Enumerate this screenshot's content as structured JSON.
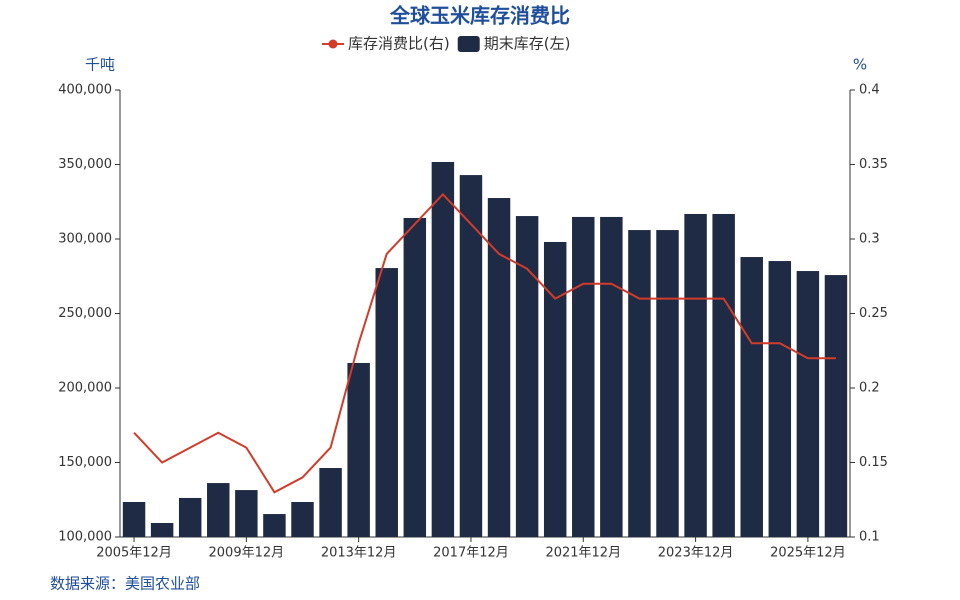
{
  "chart_data": {
    "type": "bar",
    "title": "全球玉米库存消费比",
    "y_label": "千吨",
    "y2_label": "%",
    "source": "数据来源：美国农业部",
    "categories": [
      "2005年12月",
      null,
      null,
      null,
      "2009年12月",
      null,
      null,
      null,
      "2013年12月",
      null,
      null,
      null,
      "2017年12月",
      null,
      null,
      null,
      "2021年12月",
      null,
      null,
      null,
      "2023年12月",
      null,
      null,
      null,
      "2025年12月",
      null
    ],
    "series": [
      {
        "name": "库存消费比(右)",
        "type": "line",
        "axis": "y2",
        "color": "#d23c2a",
        "values": [
          0.17,
          0.15,
          0.16,
          0.17,
          0.16,
          0.13,
          0.14,
          0.16,
          0.23,
          0.29,
          0.31,
          0.33,
          0.31,
          0.29,
          0.28,
          0.26,
          0.27,
          0.27,
          0.26,
          0.26,
          0.26,
          0.26,
          0.23,
          0.23,
          0.22,
          0.22
        ]
      },
      {
        "name": "期末库存(左)",
        "type": "bar",
        "color": "#1f2a44",
        "values": [
          123500,
          109400,
          126200,
          136200,
          131500,
          115400,
          123500,
          146300,
          216800,
          280500,
          314100,
          351700,
          342900,
          327500,
          315400,
          298000,
          314800,
          314800,
          306000,
          306000,
          316800,
          316800,
          287900,
          285200,
          278500,
          275800
        ]
      }
    ],
    "ylim": [
      100000,
      400000
    ],
    "yticks": [
      {
        "value": 100000,
        "label": "100,000"
      },
      {
        "value": 150000,
        "label": "150,000"
      },
      {
        "value": 200000,
        "label": "200,000"
      },
      {
        "value": 250000,
        "label": "250,000"
      },
      {
        "value": 300000,
        "label": "300,000"
      },
      {
        "value": 350000,
        "label": "350,000"
      },
      {
        "value": 400000,
        "label": "400,000"
      }
    ],
    "y2lim": [
      0.1,
      0.4
    ],
    "y2ticks": [
      0.1,
      0.15,
      0.2,
      0.25,
      0.3,
      0.35,
      0.4
    ]
  }
}
